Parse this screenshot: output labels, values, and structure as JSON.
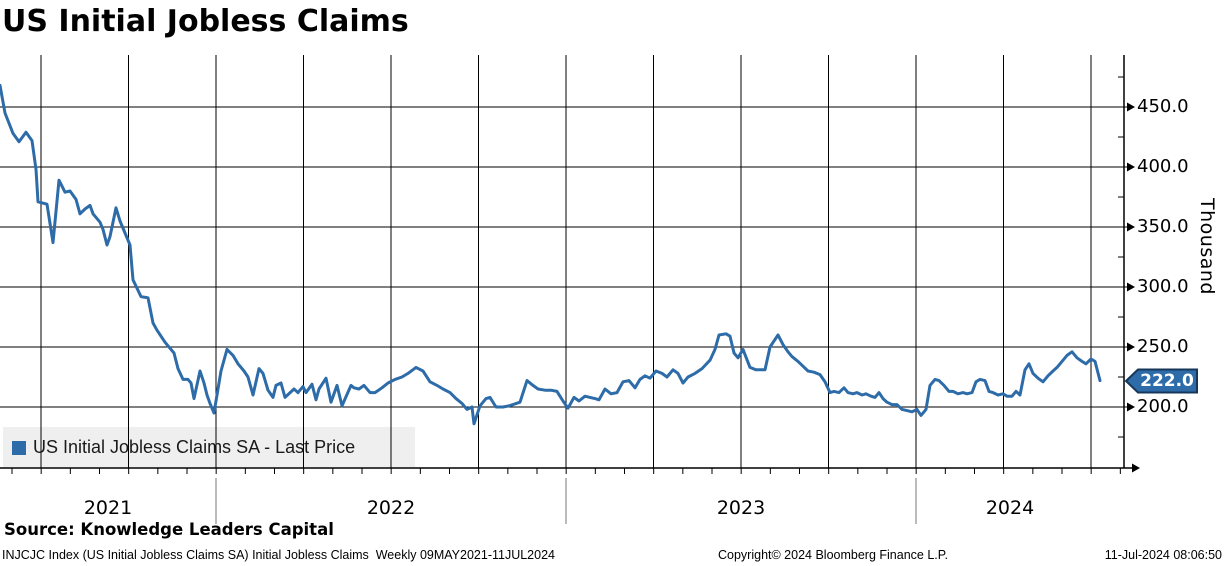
{
  "title": "US Initial Jobless Claims",
  "legend": {
    "label": "US Initial Jobless Claims SA - Last Price",
    "swatch_color": "#2d6ca8"
  },
  "last_price": {
    "value": "222.0",
    "badge_color": "#2d6ca8",
    "badge_border": "#16375a"
  },
  "y_axis": {
    "unit_label": "Thousand"
  },
  "source_line": "Source: Knowledge Leaders Capital",
  "footer": {
    "left": "INJCJC Index (US Initial Jobless Claims SA) Initial Jobless Claims  Weekly 09MAY2021-11JUL2024",
    "center": "Copyright© 2024 Bloomberg Finance L.P.",
    "right": "11-Jul-2024 08:06:50"
  },
  "chart_data": {
    "type": "line",
    "title": "US Initial Jobless Claims",
    "series_name": "US Initial Jobless Claims SA - Last Price",
    "ylabel": "Thousand",
    "frequency": "Weekly",
    "date_range": "09MAY2021-11JUL2024",
    "x_year_labels": [
      "2021",
      "2022",
      "2023",
      "2024"
    ],
    "y_tick_labels": [
      "450.0",
      "400.0",
      "350.0",
      "300.0",
      "250.0",
      "200.0"
    ],
    "y_tick_values": [
      450,
      400,
      350,
      300,
      250,
      200
    ],
    "y_minor_tick_values": [
      475,
      425,
      375,
      325,
      275,
      225,
      175
    ],
    "ylim": [
      149,
      493
    ],
    "grid": true,
    "legend_position": "bottom-left",
    "line_color": "#2d6ca8",
    "last_value": 222.0,
    "x_unit_note": "x = plot pixels from left edge; x0 = week of 09MAY2021, 350px per year, ~6.7px per week; year boundaries at x=216 (2022), 566 (2023), 916 (2024); values in thousands (SA)",
    "points": [
      [
        0,
        468
      ],
      [
        5,
        445
      ],
      [
        13,
        428
      ],
      [
        19,
        421
      ],
      [
        26,
        429
      ],
      [
        32,
        422
      ],
      [
        36,
        398
      ],
      [
        38,
        371
      ],
      [
        47,
        369
      ],
      [
        53,
        337
      ],
      [
        59,
        389
      ],
      [
        65,
        379
      ],
      [
        70,
        380
      ],
      [
        76,
        373
      ],
      [
        80,
        361
      ],
      [
        85,
        365
      ],
      [
        90,
        368
      ],
      [
        93,
        361
      ],
      [
        100,
        354
      ],
      [
        103,
        348
      ],
      [
        107,
        335
      ],
      [
        110,
        342
      ],
      [
        116,
        366
      ],
      [
        120,
        355
      ],
      [
        125,
        345
      ],
      [
        130,
        335
      ],
      [
        133,
        306
      ],
      [
        141,
        292
      ],
      [
        148,
        291
      ],
      [
        153,
        270
      ],
      [
        157,
        264
      ],
      [
        165,
        254
      ],
      [
        171,
        248
      ],
      [
        174,
        245
      ],
      [
        178,
        232
      ],
      [
        183,
        223
      ],
      [
        188,
        223
      ],
      [
        191,
        220
      ],
      [
        194,
        207
      ],
      [
        200,
        230
      ],
      [
        204,
        220
      ],
      [
        207,
        210
      ],
      [
        210,
        203
      ],
      [
        214,
        195
      ],
      [
        221,
        230
      ],
      [
        227,
        248
      ],
      [
        233,
        243
      ],
      [
        238,
        236
      ],
      [
        244,
        230
      ],
      [
        248,
        225
      ],
      [
        253,
        210
      ],
      [
        259,
        232
      ],
      [
        263,
        228
      ],
      [
        268,
        214
      ],
      [
        273,
        208
      ],
      [
        276,
        218
      ],
      [
        281,
        220
      ],
      [
        285,
        208
      ],
      [
        294,
        215
      ],
      [
        298,
        212
      ],
      [
        303,
        217
      ],
      [
        306,
        212
      ],
      [
        312,
        219
      ],
      [
        316,
        206
      ],
      [
        319,
        215
      ],
      [
        326,
        224
      ],
      [
        331,
        204
      ],
      [
        337,
        218
      ],
      [
        342,
        201
      ],
      [
        351,
        218
      ],
      [
        354,
        216
      ],
      [
        359,
        215
      ],
      [
        364,
        218
      ],
      [
        370,
        212
      ],
      [
        375,
        212
      ],
      [
        382,
        216
      ],
      [
        388,
        220
      ],
      [
        395,
        223
      ],
      [
        402,
        225
      ],
      [
        408,
        228
      ],
      [
        416,
        233
      ],
      [
        423,
        230
      ],
      [
        430,
        221
      ],
      [
        437,
        218
      ],
      [
        443,
        215
      ],
      [
        450,
        212
      ],
      [
        456,
        207
      ],
      [
        462,
        203
      ],
      [
        467,
        198
      ],
      [
        472,
        200
      ],
      [
        474,
        186
      ],
      [
        480,
        201
      ],
      [
        486,
        207
      ],
      [
        490,
        208
      ],
      [
        496,
        200
      ],
      [
        503,
        200
      ],
      [
        509,
        201
      ],
      [
        513,
        202
      ],
      [
        520,
        204
      ],
      [
        527,
        222
      ],
      [
        533,
        218
      ],
      [
        538,
        215
      ],
      [
        545,
        214
      ],
      [
        551,
        214
      ],
      [
        557,
        213
      ],
      [
        563,
        205
      ],
      [
        568,
        199
      ],
      [
        574,
        208
      ],
      [
        579,
        205
      ],
      [
        585,
        209
      ],
      [
        590,
        208
      ],
      [
        595,
        207
      ],
      [
        599,
        206
      ],
      [
        605,
        215
      ],
      [
        611,
        211
      ],
      [
        617,
        212
      ],
      [
        623,
        221
      ],
      [
        629,
        222
      ],
      [
        635,
        216
      ],
      [
        640,
        223
      ],
      [
        645,
        226
      ],
      [
        650,
        224
      ],
      [
        656,
        230
      ],
      [
        662,
        228
      ],
      [
        667,
        225
      ],
      [
        673,
        231
      ],
      [
        678,
        228
      ],
      [
        683,
        220
      ],
      [
        688,
        225
      ],
      [
        695,
        228
      ],
      [
        702,
        232
      ],
      [
        710,
        239
      ],
      [
        715,
        248
      ],
      [
        719,
        260
      ],
      [
        726,
        261
      ],
      [
        730,
        259
      ],
      [
        734,
        245
      ],
      [
        738,
        241
      ],
      [
        743,
        248
      ],
      [
        750,
        233
      ],
      [
        756,
        231
      ],
      [
        765,
        231
      ],
      [
        770,
        250
      ],
      [
        778,
        260
      ],
      [
        783,
        252
      ],
      [
        788,
        246
      ],
      [
        792,
        242
      ],
      [
        798,
        238
      ],
      [
        803,
        234
      ],
      [
        808,
        230
      ],
      [
        814,
        229
      ],
      [
        820,
        227
      ],
      [
        825,
        221
      ],
      [
        830,
        212
      ],
      [
        834,
        213
      ],
      [
        839,
        212
      ],
      [
        844,
        216
      ],
      [
        848,
        212
      ],
      [
        853,
        211
      ],
      [
        857,
        212
      ],
      [
        862,
        210
      ],
      [
        866,
        211
      ],
      [
        871,
        209
      ],
      [
        875,
        208
      ],
      [
        879,
        212
      ],
      [
        883,
        207
      ],
      [
        887,
        204
      ],
      [
        892,
        202
      ],
      [
        897,
        202
      ],
      [
        902,
        198
      ],
      [
        907,
        197
      ],
      [
        912,
        196
      ],
      [
        917,
        198
      ],
      [
        921,
        193
      ],
      [
        926,
        198
      ],
      [
        930,
        218
      ],
      [
        935,
        223
      ],
      [
        939,
        222
      ],
      [
        944,
        218
      ],
      [
        949,
        213
      ],
      [
        953,
        213
      ],
      [
        958,
        211
      ],
      [
        963,
        212
      ],
      [
        967,
        211
      ],
      [
        972,
        212
      ],
      [
        976,
        221
      ],
      [
        980,
        223
      ],
      [
        985,
        222
      ],
      [
        989,
        213
      ],
      [
        993,
        212
      ],
      [
        998,
        210
      ],
      [
        1003,
        211
      ],
      [
        1007,
        209
      ],
      [
        1012,
        209
      ],
      [
        1016,
        213
      ],
      [
        1020,
        210
      ],
      [
        1025,
        231
      ],
      [
        1029,
        236
      ],
      [
        1033,
        228
      ],
      [
        1038,
        224
      ],
      [
        1043,
        221
      ],
      [
        1048,
        226
      ],
      [
        1053,
        230
      ],
      [
        1057,
        233
      ],
      [
        1062,
        238
      ],
      [
        1067,
        243
      ],
      [
        1072,
        246
      ],
      [
        1077,
        241
      ],
      [
        1082,
        238
      ],
      [
        1086,
        236
      ],
      [
        1091,
        240
      ],
      [
        1095,
        238
      ],
      [
        1100,
        222
      ]
    ]
  }
}
